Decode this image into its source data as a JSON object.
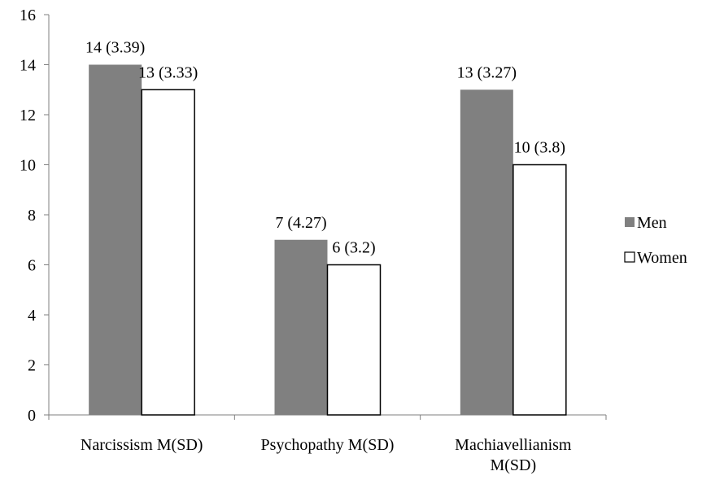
{
  "chart_data": {
    "type": "bar",
    "categories": [
      [
        "Narcissism M(SD)"
      ],
      [
        "Psychopathy M(SD)"
      ],
      [
        "Machiavellianism",
        "M(SD)"
      ]
    ],
    "series": [
      {
        "name": "Men",
        "color": "#808080",
        "values": [
          14,
          7,
          13
        ],
        "labels": [
          "14 (3.39)",
          "7 (4.27)",
          "13 (3.27)"
        ]
      },
      {
        "name": "Women",
        "color": "#ffffff",
        "values": [
          13,
          6,
          10
        ],
        "labels": [
          "13 (3.33)",
          "6 (3.2)",
          "10 (3.8)"
        ]
      }
    ],
    "ylim": [
      0,
      16
    ],
    "yticks": [
      0,
      2,
      4,
      6,
      8,
      10,
      12,
      14,
      16
    ],
    "grid": false,
    "legend": "right"
  }
}
